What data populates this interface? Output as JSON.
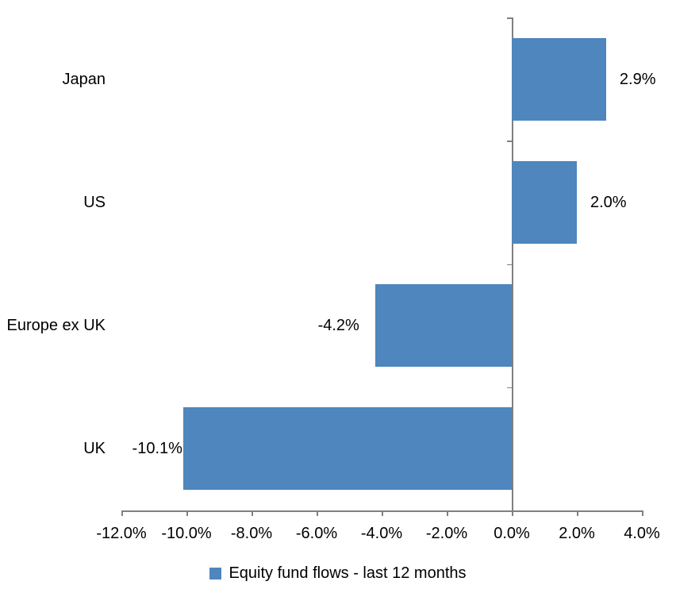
{
  "chart_data": {
    "type": "bar",
    "orientation": "horizontal",
    "title": "",
    "categories": [
      "Japan",
      "US",
      "Europe ex UK",
      "UK"
    ],
    "series": [
      {
        "name": "Equity fund flows - last 12 months",
        "values": [
          2.9,
          2.0,
          -4.2,
          -10.1
        ],
        "data_labels": [
          "2.9%",
          "2.0%",
          "-4.2%",
          "-10.1%"
        ]
      }
    ],
    "x_axis": {
      "min": -12,
      "max": 4,
      "step": 2,
      "tick_labels": [
        "-12.0%",
        "-10.0%",
        "-8.0%",
        "-6.0%",
        "-4.0%",
        "-2.0%",
        "0.0%",
        "2.0%",
        "4.0%"
      ]
    },
    "y_axis": {
      "label": ""
    },
    "legend": {
      "position": "bottom",
      "label": "Equity fund flows - last 12 months"
    },
    "grid": false,
    "colors": {
      "bar": "#4E86BD",
      "axis": "#808080",
      "text": "#000000",
      "background": "#FFFFFF"
    }
  }
}
